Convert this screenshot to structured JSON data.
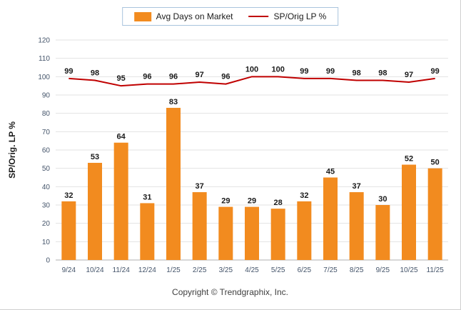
{
  "chart_data": {
    "type": "bar+line",
    "title": "",
    "categories": [
      "9/24",
      "10/24",
      "11/24",
      "12/24",
      "1/25",
      "2/25",
      "3/25",
      "4/25",
      "5/25",
      "6/25",
      "7/25",
      "8/25",
      "9/25",
      "10/25",
      "11/25"
    ],
    "series": [
      {
        "name": "Avg Days on Market",
        "type": "bar",
        "color": "#F28B1F",
        "values": [
          32,
          53,
          64,
          31,
          83,
          37,
          29,
          29,
          28,
          32,
          45,
          37,
          30,
          52,
          50
        ]
      },
      {
        "name": "SP/Orig LP %",
        "type": "line",
        "color": "#C00000",
        "values": [
          99,
          98,
          95,
          96,
          96,
          97,
          96,
          100,
          100,
          99,
          99,
          98,
          98,
          97,
          99
        ]
      }
    ],
    "xlabel": "",
    "ylabel": "SP/Orig. LP %",
    "ylim": [
      0,
      120
    ],
    "ytick_step": 10,
    "grid": "horizontal",
    "legend_position": "top-center",
    "footer": "Copyright © Trendgraphix, Inc."
  }
}
